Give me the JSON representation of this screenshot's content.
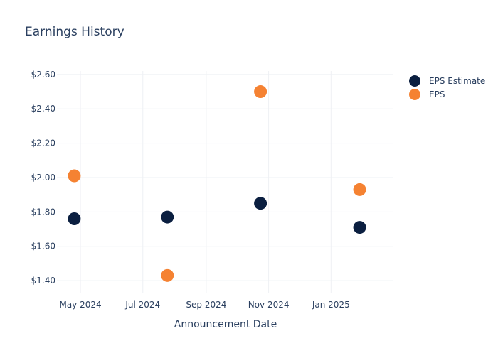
{
  "chart_data": {
    "type": "scatter",
    "title": "Earnings History",
    "xlabel": "Announcement Date",
    "ylabel": "",
    "x_ticks": [
      {
        "date": "2024-05-01",
        "label": "May 2024"
      },
      {
        "date": "2024-07-01",
        "label": "Jul 2024"
      },
      {
        "date": "2024-09-01",
        "label": "Sep 2024"
      },
      {
        "date": "2024-11-01",
        "label": "Nov 2024"
      },
      {
        "date": "2025-01-01",
        "label": "Jan 2025"
      }
    ],
    "y_ticks": [
      {
        "value": 1.4,
        "label": "$1.40"
      },
      {
        "value": 1.6,
        "label": "$1.60"
      },
      {
        "value": 1.8,
        "label": "$1.80"
      },
      {
        "value": 2.0,
        "label": "$2.00"
      },
      {
        "value": 2.2,
        "label": "$2.20"
      },
      {
        "value": 2.4,
        "label": "$2.40"
      },
      {
        "value": 2.6,
        "label": "$2.60"
      }
    ],
    "xlim": [
      "2024-04-08",
      "2025-03-03"
    ],
    "ylim": [
      1.33,
      2.62
    ],
    "grid": true,
    "legend_position": "top-right",
    "series": [
      {
        "name": "EPS Estimate",
        "color": "#0b1f40",
        "points": [
          {
            "x": "2024-04-25",
            "y": 1.76
          },
          {
            "x": "2024-07-25",
            "y": 1.77
          },
          {
            "x": "2024-10-24",
            "y": 1.85
          },
          {
            "x": "2025-01-29",
            "y": 1.71
          }
        ]
      },
      {
        "name": "EPS",
        "color": "#f58232",
        "points": [
          {
            "x": "2024-04-25",
            "y": 2.01
          },
          {
            "x": "2024-07-25",
            "y": 1.43
          },
          {
            "x": "2024-10-24",
            "y": 2.5
          },
          {
            "x": "2025-01-29",
            "y": 1.93
          }
        ]
      }
    ]
  }
}
